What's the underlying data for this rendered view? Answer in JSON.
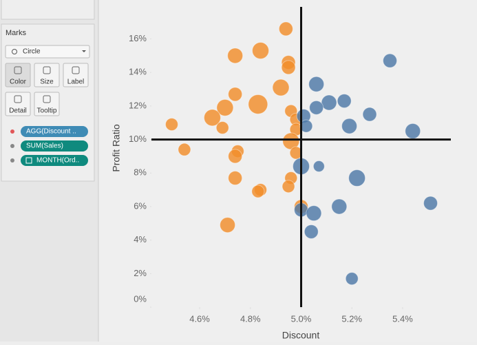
{
  "sidebar": {
    "marks_title": "Marks",
    "mark_type": "Circle",
    "buttons": [
      "Color",
      "Size",
      "Label",
      "Detail",
      "Tooltip"
    ],
    "pills": [
      "AGG(Discount ..",
      "SUM(Sales)",
      "MONTH(Ord.."
    ]
  },
  "chart_data": {
    "type": "scatter",
    "x_label": "Discount",
    "y_label": "Profit Ratio",
    "xlim": [
      4.41,
      5.59
    ],
    "ylim": [
      0,
      17.5
    ],
    "xticks": [
      {
        "value": 4.6,
        "label": "4.6%"
      },
      {
        "value": 4.8,
        "label": "4.8%"
      },
      {
        "value": 5.0,
        "label": "5.0%"
      },
      {
        "value": 5.2,
        "label": "5.2%"
      },
      {
        "value": 5.4,
        "label": "5.4%"
      }
    ],
    "yticks": [
      {
        "value": 0,
        "label": "0%"
      },
      {
        "value": 2,
        "label": "2%"
      },
      {
        "value": 4,
        "label": "4%"
      },
      {
        "value": 6,
        "label": "6%"
      },
      {
        "value": 8,
        "label": "8%"
      },
      {
        "value": 10,
        "label": "10%"
      },
      {
        "value": 12,
        "label": "12%"
      },
      {
        "value": 14,
        "label": "14%"
      },
      {
        "value": 16,
        "label": "16%"
      }
    ],
    "reference_lines": {
      "x": 5.0,
      "y": 10
    },
    "series": [
      {
        "color": "#f28e2b",
        "x": [
          4.94,
          4.74,
          4.84,
          4.95,
          4.95,
          4.74,
          4.7,
          4.83,
          4.65,
          4.69,
          4.49,
          4.96,
          4.98,
          4.98,
          4.96,
          4.98,
          4.54,
          4.75,
          4.74,
          4.74,
          4.96,
          4.95,
          4.84,
          4.83,
          5.0,
          4.71,
          4.92
        ],
        "values": [
          16.6,
          15.0,
          15.3,
          14.6,
          14.3,
          12.7,
          11.9,
          12.1,
          11.3,
          10.7,
          10.9,
          11.7,
          11.2,
          10.6,
          9.9,
          9.2,
          9.4,
          9.3,
          9.0,
          7.7,
          7.7,
          7.2,
          7.0,
          6.9,
          6.0,
          4.9,
          13.1
        ],
        "sizes": [
          10,
          11,
          12,
          10,
          10,
          10,
          12,
          14,
          12,
          9,
          9,
          9,
          9,
          9,
          12,
          9,
          9,
          9,
          10,
          10,
          9,
          9,
          9,
          9,
          10,
          11,
          12
        ]
      },
      {
        "color": "#4e79a7",
        "x": [
          5.06,
          5.35,
          5.11,
          5.17,
          5.06,
          5.01,
          5.02,
          5.19,
          5.27,
          5.44,
          5.0,
          5.07,
          5.22,
          5.15,
          5.51,
          5.0,
          5.05,
          5.04,
          5.2
        ],
        "values": [
          13.3,
          14.7,
          12.2,
          12.3,
          11.9,
          11.4,
          10.8,
          10.8,
          11.5,
          10.5,
          8.4,
          8.4,
          7.7,
          6.0,
          6.2,
          5.8,
          5.6,
          4.5,
          1.7
        ],
        "sizes": [
          11,
          10,
          11,
          10,
          10,
          10,
          9,
          11,
          10,
          11,
          12,
          8,
          12,
          11,
          10,
          10,
          11,
          10,
          9
        ]
      }
    ]
  }
}
